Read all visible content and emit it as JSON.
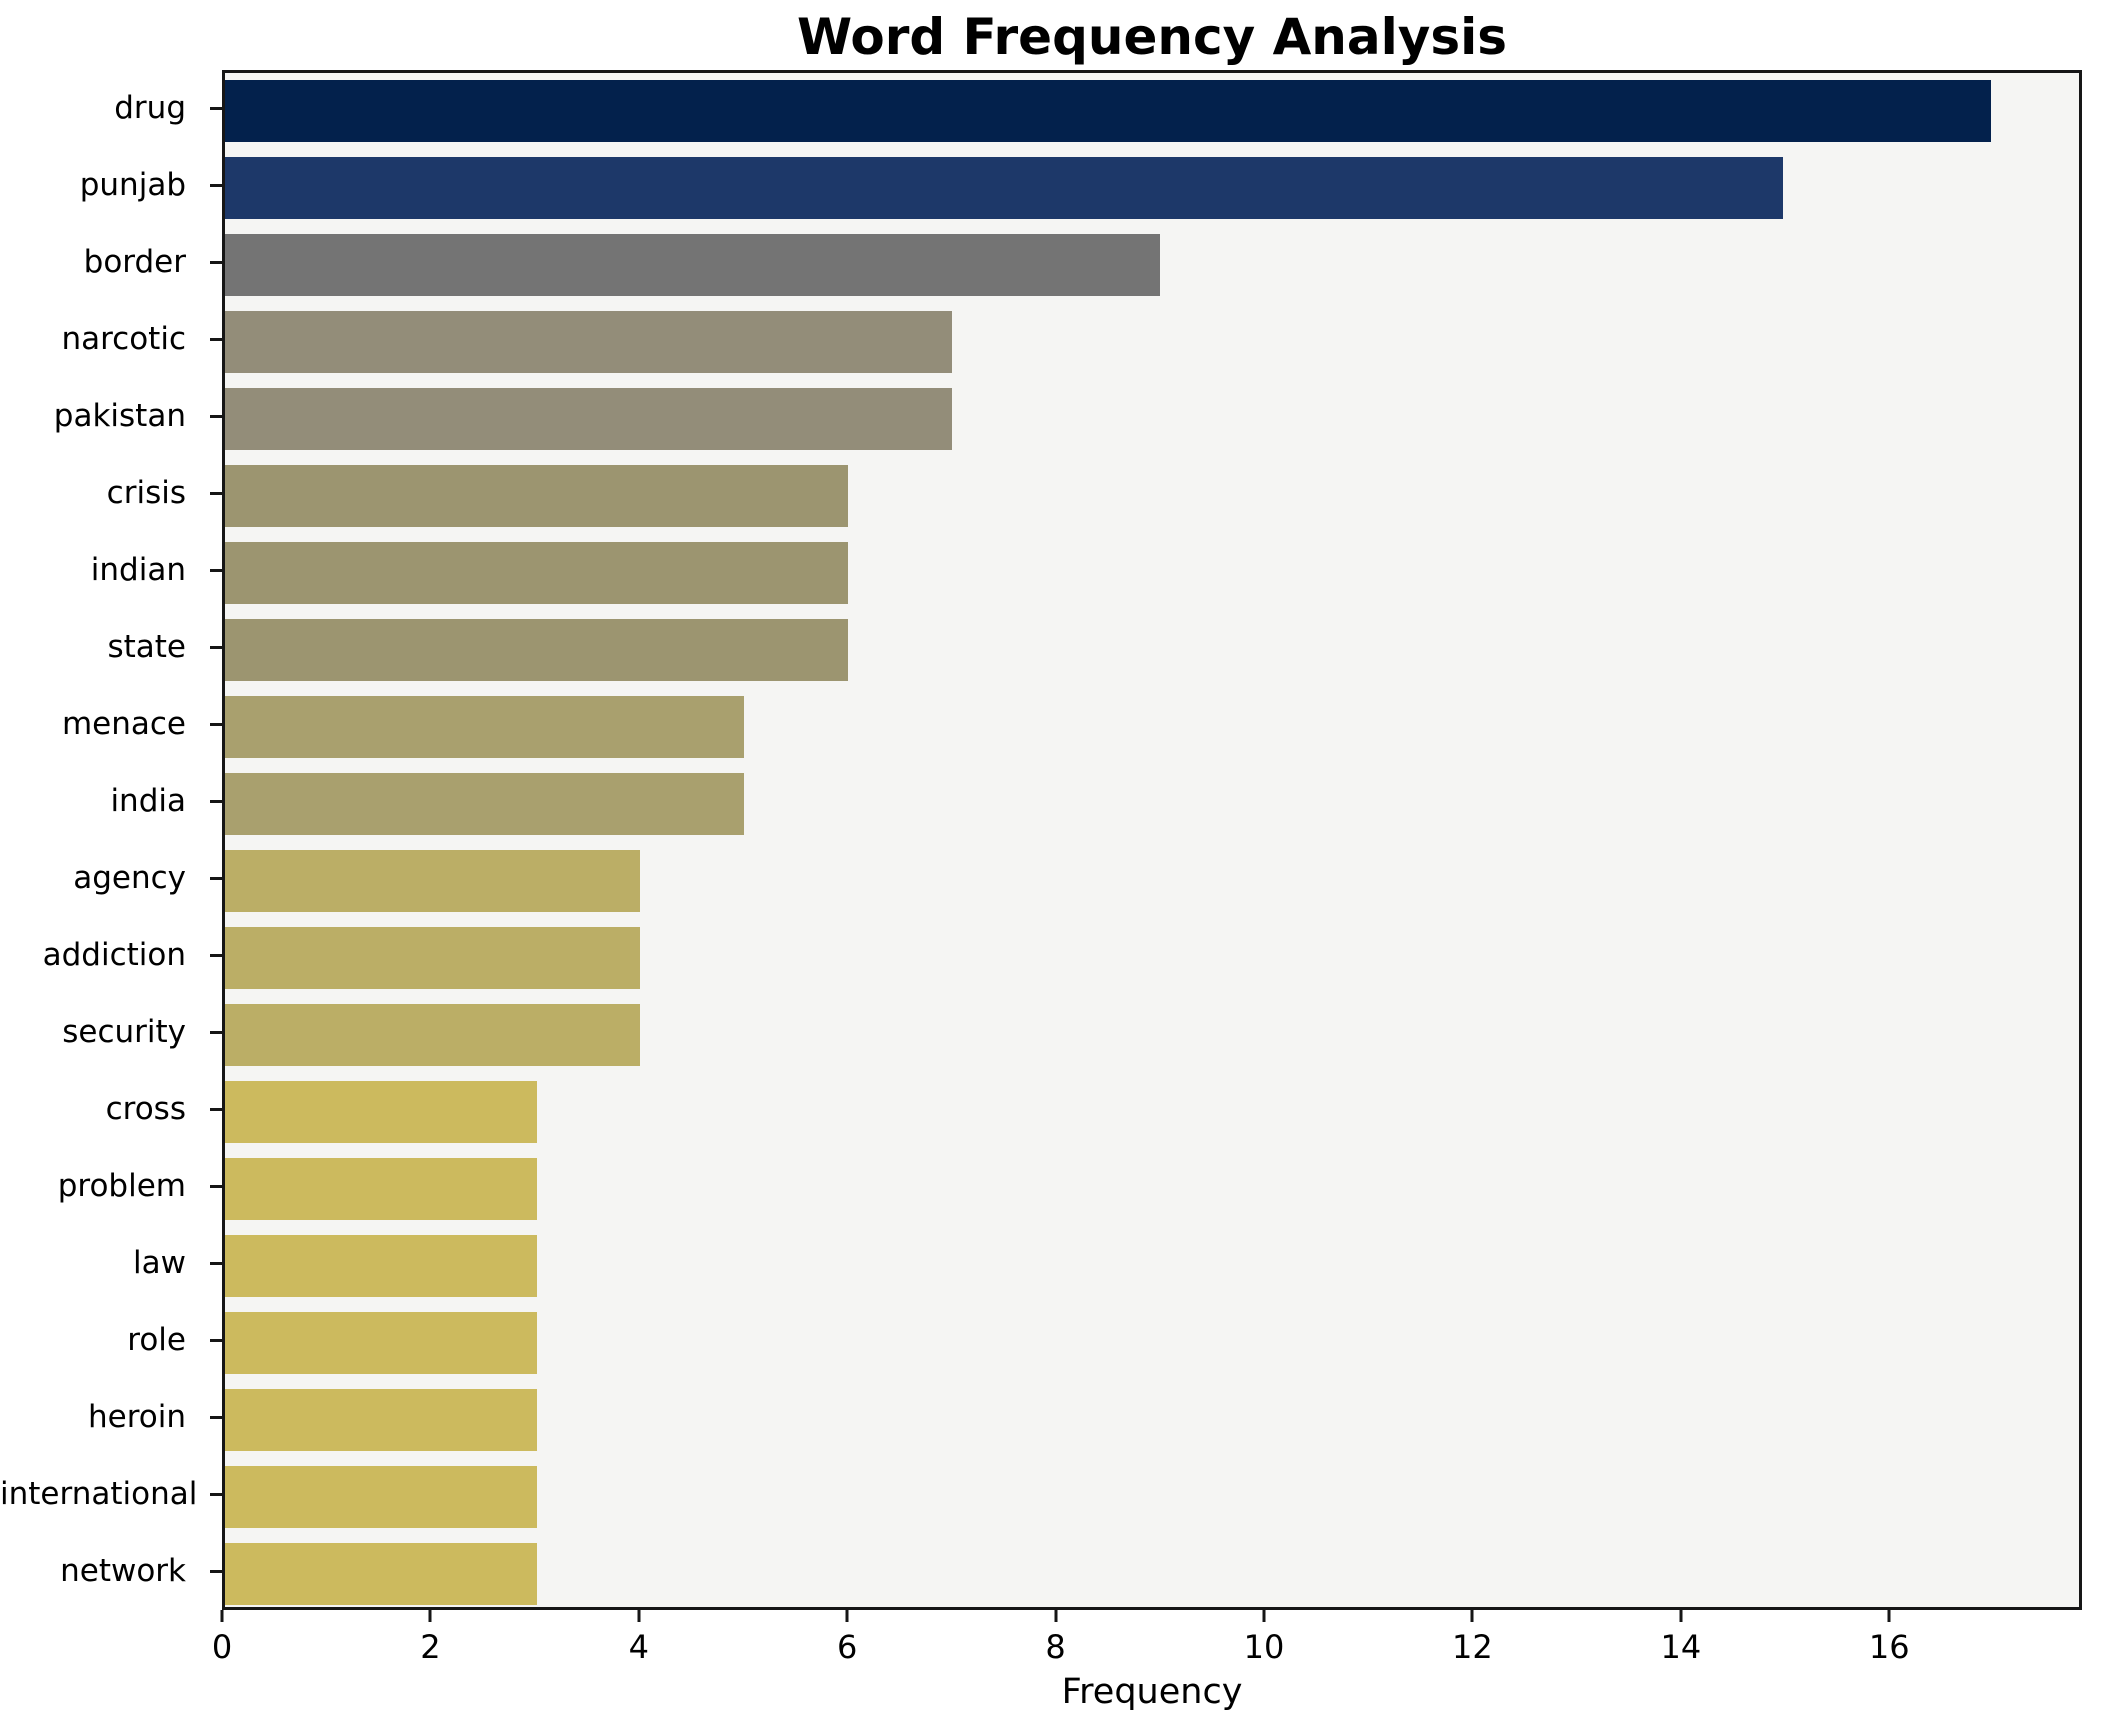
{
  "title": "Word Frequency Analysis",
  "chart_data": {
    "type": "bar",
    "orientation": "horizontal",
    "title": "Word Frequency Analysis",
    "xlabel": "Frequency",
    "ylabel": "",
    "categories": [
      "drug",
      "punjab",
      "border",
      "narcotic",
      "pakistan",
      "crisis",
      "indian",
      "state",
      "menace",
      "india",
      "agency",
      "addiction",
      "security",
      "cross",
      "problem",
      "law",
      "role",
      "heroin",
      "international",
      "network"
    ],
    "values": [
      17,
      15,
      9,
      7,
      7,
      6,
      6,
      6,
      5,
      5,
      4,
      4,
      4,
      3,
      3,
      3,
      3,
      3,
      3,
      3
    ],
    "bar_colors": [
      "#03214c",
      "#1d3869",
      "#747474",
      "#938d79",
      "#938d79",
      "#9c9570",
      "#9c9570",
      "#9c9570",
      "#a9a06e",
      "#a9a06e",
      "#bbae66",
      "#bbae66",
      "#bbae66",
      "#ccba5e",
      "#ccba5e",
      "#ccba5e",
      "#ccba5e",
      "#ccba5e",
      "#ccba5e",
      "#ccba5e"
    ],
    "xlim": [
      0,
      17.85
    ],
    "xticks": [
      0,
      2,
      4,
      6,
      8,
      10,
      12,
      14,
      16
    ],
    "grid": false,
    "legend": "none",
    "plot_background": "#f5f5f3",
    "figure_background": "#ffffff",
    "spine_color": "#161616"
  }
}
